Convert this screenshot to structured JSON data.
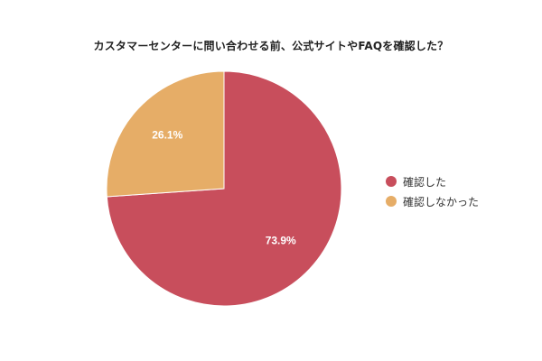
{
  "chart_data": {
    "type": "pie",
    "title": "カスタマーセンターに問い合わせる前、公式サイトやFAQを確認した？",
    "slices": [
      {
        "label": "確認した",
        "value": 73.9,
        "value_label": "73.9%",
        "color": "#c84e5c"
      },
      {
        "label": "確認しなかった",
        "value": 26.1,
        "value_label": "26.1%",
        "color": "#e6ad67"
      }
    ],
    "legend_position": "right"
  }
}
